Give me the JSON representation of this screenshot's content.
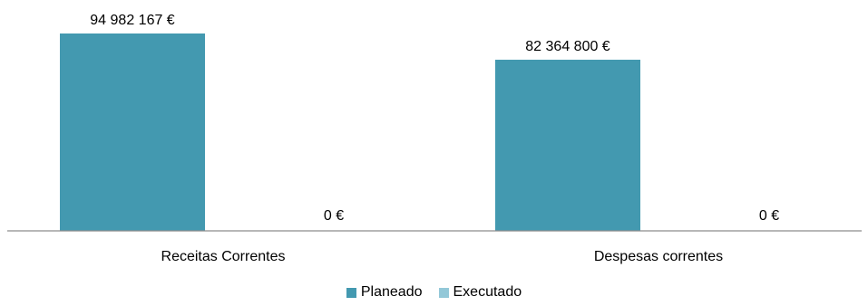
{
  "chart_data": {
    "type": "bar",
    "categories": [
      "Receitas Correntes",
      "Despesas correntes"
    ],
    "series": [
      {
        "name": "Planeado",
        "values": [
          94982167,
          82364800
        ],
        "labels": [
          "94 982 167 €",
          "82 364 800 €"
        ],
        "color": "#4399B0"
      },
      {
        "name": "Executado",
        "values": [
          0,
          0
        ],
        "labels": [
          "0 €",
          "0 €"
        ],
        "color": "#93C8D8"
      }
    ],
    "title": "",
    "xlabel": "",
    "ylabel": "",
    "ylim": [
      0,
      100000000
    ],
    "grid": false,
    "legend_position": "bottom"
  }
}
